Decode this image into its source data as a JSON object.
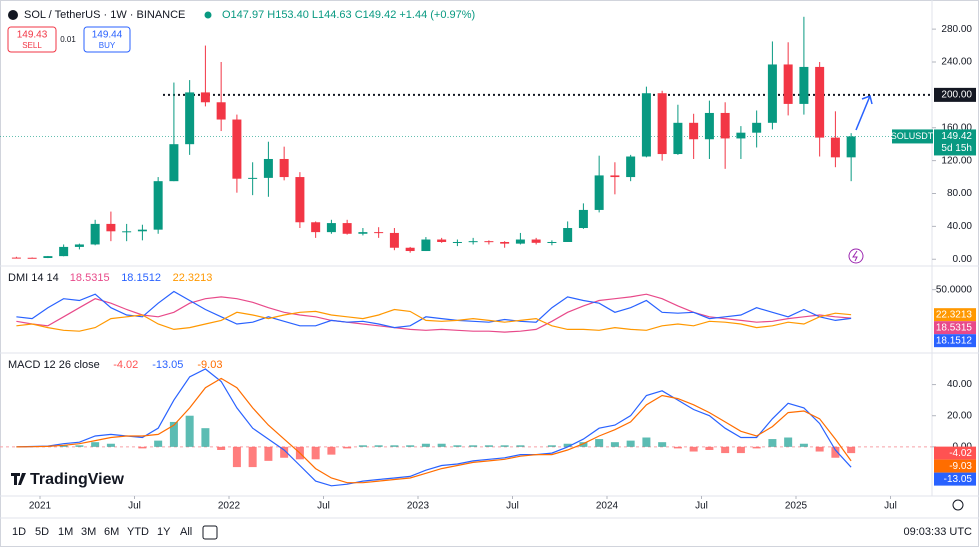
{
  "chart_data": [
    {
      "type": "candlestick",
      "title": "SOL / TetherUS · 1W · BINANCE",
      "subtitle": "O147.97 H153.40 L144.63 C149.42 +1.44 (+0.97%)",
      "x": [
        "2020-11",
        "2020-12",
        "2021-01",
        "2021-02",
        "2021-03",
        "2021-04",
        "2021-05",
        "2021-06",
        "2021-07",
        "2021-08",
        "2021-09",
        "2021-10",
        "2021-11",
        "2021-12",
        "2022-01",
        "2022-02",
        "2022-03",
        "2022-04",
        "2022-05",
        "2022-06",
        "2022-07",
        "2022-08",
        "2022-09",
        "2022-10",
        "2022-11",
        "2022-12",
        "2023-01",
        "2023-02",
        "2023-03",
        "2023-04",
        "2023-05",
        "2023-06",
        "2023-07",
        "2023-08",
        "2023-09",
        "2023-10",
        "2023-11",
        "2023-12",
        "2024-01",
        "2024-02",
        "2024-03",
        "2024-04",
        "2024-05",
        "2024-06",
        "2024-07",
        "2024-08",
        "2024-09",
        "2024-10",
        "2024-11",
        "2024-12",
        "2025-01",
        "2025-02",
        "2025-03",
        "2025-04"
      ],
      "open": [
        2,
        1.8,
        1.5,
        3.8,
        15,
        18,
        43,
        34,
        34,
        36,
        95,
        140,
        203,
        191,
        170,
        98,
        99,
        122,
        100,
        45,
        33,
        44,
        31,
        33,
        32,
        14,
        10,
        24,
        21,
        21,
        22,
        21,
        19,
        24,
        20,
        21,
        38,
        60,
        102,
        100,
        125,
        202,
        128,
        166,
        146,
        178,
        147,
        154,
        166,
        237,
        189,
        234,
        148,
        124
      ],
      "high": [
        3,
        2.2,
        4,
        18,
        19,
        48,
        58,
        43,
        42,
        100,
        215,
        218,
        260,
        240,
        176,
        118,
        143,
        137,
        106,
        46,
        48,
        48,
        38,
        39,
        38,
        15,
        27,
        26,
        24,
        26,
        23,
        22,
        32,
        26,
        23,
        46,
        68,
        126,
        118,
        127,
        210,
        205,
        188,
        177,
        193,
        191,
        162,
        181,
        265,
        264,
        295,
        240,
        180,
        153.4
      ],
      "low": [
        1.5,
        1.2,
        1.4,
        3.6,
        12,
        17,
        22,
        22,
        23,
        31,
        95,
        127,
        186,
        156,
        81,
        78,
        76,
        96,
        38,
        26,
        31,
        30,
        29,
        26,
        11,
        8,
        10,
        20,
        16,
        18,
        18,
        14,
        18,
        18,
        17,
        21,
        37,
        57,
        79,
        95,
        124,
        120,
        127,
        122,
        122,
        110,
        122,
        136,
        158,
        175,
        176,
        125,
        112,
        95
      ],
      "close": [
        1.8,
        1.5,
        3.8,
        15,
        18,
        43,
        34,
        34,
        36,
        95,
        140,
        203,
        191,
        170,
        98,
        99,
        122,
        100,
        45,
        33,
        44,
        31,
        33,
        32,
        14,
        10,
        24,
        21,
        21,
        22,
        21,
        19,
        24,
        20,
        21,
        38,
        60,
        102,
        100,
        125,
        202,
        128,
        166,
        146,
        178,
        147,
        154,
        166,
        237,
        189,
        234,
        148,
        124,
        149.42
      ],
      "up_color": "#089981",
      "down_color": "#f23645",
      "ylim": [
        -7,
        313
      ],
      "yticks": [
        {
          "value": 0,
          "label": "0.00"
        },
        {
          "value": 40,
          "label": "40.00"
        },
        {
          "value": 80,
          "label": "80.00"
        },
        {
          "value": 120,
          "label": "120.00"
        },
        {
          "value": 160,
          "label": "160.00"
        },
        {
          "value": 240,
          "label": "240.00"
        },
        {
          "value": 280,
          "label": "280.00"
        }
      ],
      "xticks": [
        {
          "value": "2021-01",
          "label": "2021"
        },
        {
          "value": "2021-07",
          "label": "Jul"
        },
        {
          "value": "2022-01",
          "label": "2022"
        },
        {
          "value": "2022-07",
          "label": "Jul"
        },
        {
          "value": "2023-01",
          "label": "2023"
        },
        {
          "value": "2023-07",
          "label": "Jul"
        },
        {
          "value": "2024-01",
          "label": "2024"
        },
        {
          "value": "2024-07",
          "label": "Jul"
        },
        {
          "value": "2025-01",
          "label": "2025"
        },
        {
          "value": "2025-07",
          "label": "Jul"
        }
      ],
      "hline": {
        "value": 200,
        "label": "200.00"
      },
      "last": {
        "symbol": "SOLUSDT",
        "value": 149.42,
        "countdown": "5d 15h"
      },
      "grid": false
    },
    {
      "type": "line",
      "title": "DMI 14 14",
      "x": [
        "2020-11",
        "2020-12",
        "2021-01",
        "2021-02",
        "2021-03",
        "2021-04",
        "2021-05",
        "2021-06",
        "2021-07",
        "2021-08",
        "2021-09",
        "2021-10",
        "2021-11",
        "2021-12",
        "2022-01",
        "2022-02",
        "2022-03",
        "2022-04",
        "2022-05",
        "2022-06",
        "2022-07",
        "2022-08",
        "2022-09",
        "2022-10",
        "2022-11",
        "2022-12",
        "2023-01",
        "2023-02",
        "2023-03",
        "2023-04",
        "2023-05",
        "2023-06",
        "2023-07",
        "2023-08",
        "2023-09",
        "2023-10",
        "2023-11",
        "2023-12",
        "2024-01",
        "2024-02",
        "2024-03",
        "2024-04",
        "2024-05",
        "2024-06",
        "2024-07",
        "2024-08",
        "2024-09",
        "2024-10",
        "2024-11",
        "2024-12",
        "2025-01",
        "2025-02",
        "2025-03",
        "2025-04"
      ],
      "series": [
        {
          "color": "#e84a8a",
          "values": [
            15,
            12,
            10,
            20,
            30,
            40,
            35,
            28,
            22,
            20,
            25,
            35,
            40,
            42,
            40,
            36,
            30,
            25,
            22,
            20,
            16,
            14,
            12,
            10,
            8,
            6,
            5,
            6,
            5,
            4,
            4,
            3,
            4,
            6,
            15,
            25,
            32,
            38,
            40,
            42,
            45,
            40,
            32,
            25,
            20,
            18,
            16,
            14,
            15,
            18,
            20,
            22,
            20,
            18.5315
          ]
        },
        {
          "color": "#2962ff",
          "values": [
            20,
            18,
            30,
            40,
            38,
            45,
            30,
            22,
            20,
            35,
            48,
            38,
            28,
            20,
            12,
            14,
            20,
            15,
            10,
            10,
            16,
            14,
            15,
            12,
            8,
            10,
            20,
            18,
            16,
            15,
            14,
            17,
            15,
            14,
            30,
            42,
            38,
            35,
            25,
            30,
            38,
            25,
            24,
            25,
            18,
            20,
            22,
            30,
            25,
            20,
            28,
            20,
            16,
            18.1512
          ]
        },
        {
          "color": "#ff9800",
          "values": [
            10,
            12,
            8,
            5,
            4,
            8,
            18,
            20,
            22,
            12,
            6,
            8,
            12,
            16,
            25,
            22,
            18,
            22,
            25,
            26,
            22,
            20,
            18,
            22,
            28,
            26,
            16,
            15,
            16,
            18,
            16,
            14,
            16,
            18,
            10,
            6,
            6,
            5,
            8,
            6,
            5,
            10,
            12,
            10,
            15,
            14,
            12,
            8,
            10,
            14,
            12,
            20,
            24,
            22.3213
          ]
        }
      ],
      "ylim": [
        -19,
        74
      ],
      "yticks": [
        {
          "value": 50,
          "label": "50.0000"
        }
      ],
      "grid": false
    },
    {
      "type": "line",
      "title": "MACD 12 26 close",
      "x": [
        "2020-11",
        "2020-12",
        "2021-01",
        "2021-02",
        "2021-03",
        "2021-04",
        "2021-05",
        "2021-06",
        "2021-07",
        "2021-08",
        "2021-09",
        "2021-10",
        "2021-11",
        "2021-12",
        "2022-01",
        "2022-02",
        "2022-03",
        "2022-04",
        "2022-05",
        "2022-06",
        "2022-07",
        "2022-08",
        "2022-09",
        "2022-10",
        "2022-11",
        "2022-12",
        "2023-01",
        "2023-02",
        "2023-03",
        "2023-04",
        "2023-05",
        "2023-06",
        "2023-07",
        "2023-08",
        "2023-09",
        "2023-10",
        "2023-11",
        "2023-12",
        "2024-01",
        "2024-02",
        "2024-03",
        "2024-04",
        "2024-05",
        "2024-06",
        "2024-07",
        "2024-08",
        "2024-09",
        "2024-10",
        "2024-11",
        "2024-12",
        "2025-01",
        "2025-02",
        "2025-03",
        "2025-04"
      ],
      "series": [
        {
          "type": "bar",
          "color": "#26a69a",
          "negative_color": "#ff5252",
          "values": [
            0,
            0.1,
            0.2,
            1,
            1,
            3,
            2,
            0,
            -1,
            4,
            16,
            20,
            12,
            -2,
            -13,
            -13,
            -9,
            -7,
            -8,
            -8,
            -5,
            -1,
            1,
            1,
            1,
            1,
            2,
            2,
            1,
            1,
            1,
            1,
            1,
            0,
            1,
            2,
            3,
            5,
            3,
            4,
            6,
            3,
            -1,
            -3,
            -2,
            -4,
            -4,
            -1,
            5,
            6,
            2,
            -3,
            -7,
            -4.02
          ]
        },
        {
          "type": "line",
          "color": "#2962ff",
          "values": [
            0,
            0.2,
            0.5,
            2,
            3,
            7,
            8,
            7,
            6,
            12,
            30,
            45,
            50,
            42,
            25,
            12,
            5,
            -2,
            -12,
            -22,
            -25,
            -24,
            -22,
            -21,
            -20,
            -19,
            -15,
            -12,
            -11,
            -9,
            -8,
            -7,
            -5,
            -5,
            -4,
            0,
            5,
            12,
            14,
            20,
            33,
            36,
            30,
            24,
            20,
            12,
            6,
            6,
            18,
            28,
            25,
            15,
            -2,
            -13.05
          ]
        },
        {
          "type": "line",
          "color": "#ff6d00",
          "values": [
            0,
            0.1,
            0.3,
            1,
            2,
            4,
            6,
            7,
            7,
            8,
            14,
            25,
            38,
            44,
            38,
            25,
            14,
            5,
            -4,
            -14,
            -20,
            -23,
            -23,
            -22,
            -21,
            -20,
            -17,
            -14,
            -12,
            -10,
            -9,
            -8,
            -6,
            -5,
            -5,
            -2,
            2,
            7,
            11,
            16,
            27,
            33,
            31,
            27,
            22,
            16,
            10,
            7,
            13,
            22,
            23,
            18,
            5,
            -9.03
          ]
        }
      ],
      "ylim": [
        -29,
        59
      ],
      "yticks": [
        {
          "value": 0,
          "label": "0.00"
        },
        {
          "value": 20,
          "label": "20.00"
        },
        {
          "value": 40,
          "label": "40.00"
        }
      ],
      "grid": false
    }
  ],
  "ui": {
    "sell_price": "149.43",
    "sell": "SELL",
    "spread": "0.01",
    "buy_price": "149.44",
    "buy": "BUY",
    "logo": "TradingView",
    "periods": [
      "1D",
      "5D",
      "1M",
      "3M",
      "6M",
      "YTD",
      "1Y",
      "All"
    ],
    "clock": "09:03:33 UTC"
  }
}
